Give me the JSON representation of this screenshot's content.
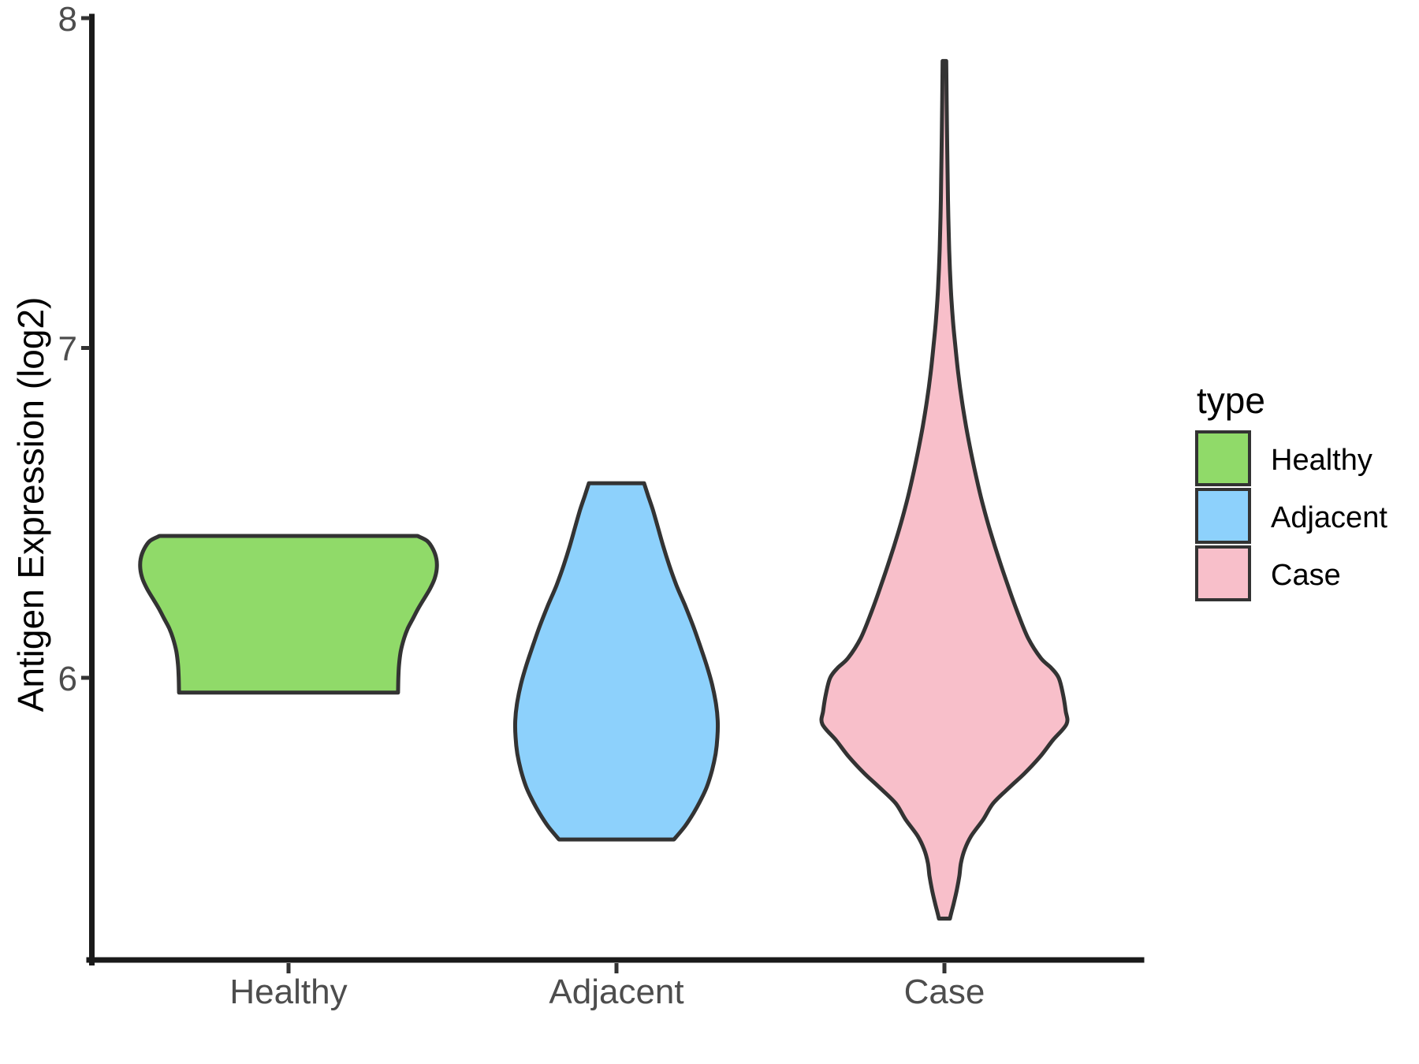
{
  "chart_data": {
    "type": "violin",
    "title": "",
    "xlabel": "",
    "ylabel": "Antigen Expression (log2)",
    "categories": [
      "Healthy",
      "Adjacent",
      "Case"
    ],
    "y_axis": {
      "ticks": [
        8,
        7,
        6
      ],
      "range": [
        5.14,
        8.0
      ],
      "grid": false
    },
    "x_axis": {
      "tick_labels": [
        "Healthy",
        "Adjacent",
        "Case"
      ]
    },
    "legend": {
      "title": "type",
      "position": "right",
      "entries": [
        {
          "label": "Healthy",
          "color": "#90DA69"
        },
        {
          "label": "Adjacent",
          "color": "#8DD1FC"
        },
        {
          "label": "Case",
          "color": "#F8BFCA"
        }
      ]
    },
    "style": {
      "outline_color": "#333333",
      "axis_color": "#1A1A1A",
      "tick_label_color": "#4D4D4D",
      "background": "#FFFFFF"
    },
    "series": [
      {
        "name": "Healthy",
        "fill": "#90DA69",
        "value_range": [
          5.955,
          6.43
        ],
        "profile": [
          [
            6.43,
            0.87
          ],
          [
            6.415,
            0.935
          ],
          [
            6.39,
            0.975
          ],
          [
            6.36,
            0.998
          ],
          [
            6.33,
            1.0
          ],
          [
            6.3,
            0.985
          ],
          [
            6.27,
            0.955
          ],
          [
            6.24,
            0.915
          ],
          [
            6.21,
            0.875
          ],
          [
            6.18,
            0.84
          ],
          [
            6.15,
            0.805
          ],
          [
            6.12,
            0.78
          ],
          [
            6.08,
            0.757
          ],
          [
            6.04,
            0.746
          ],
          [
            6.0,
            0.741
          ],
          [
            5.955,
            0.739
          ]
        ]
      },
      {
        "name": "Adjacent",
        "fill": "#8DD1FC",
        "value_range": [
          5.51,
          6.59
        ],
        "profile": [
          [
            6.59,
            0.186
          ],
          [
            6.55,
            0.215
          ],
          [
            6.51,
            0.245
          ],
          [
            6.46,
            0.277
          ],
          [
            6.4,
            0.315
          ],
          [
            6.34,
            0.357
          ],
          [
            6.28,
            0.405
          ],
          [
            6.22,
            0.462
          ],
          [
            6.16,
            0.515
          ],
          [
            6.1,
            0.562
          ],
          [
            6.04,
            0.607
          ],
          [
            5.98,
            0.645
          ],
          [
            5.92,
            0.672
          ],
          [
            5.87,
            0.683
          ],
          [
            5.82,
            0.681
          ],
          [
            5.77,
            0.669
          ],
          [
            5.72,
            0.645
          ],
          [
            5.67,
            0.61
          ],
          [
            5.63,
            0.569
          ],
          [
            5.59,
            0.52
          ],
          [
            5.55,
            0.462
          ],
          [
            5.51,
            0.388
          ]
        ]
      },
      {
        "name": "Case",
        "fill": "#F8BFCA",
        "value_range": [
          5.27,
          7.87
        ],
        "profile": [
          [
            7.87,
            0.012
          ],
          [
            7.75,
            0.015
          ],
          [
            7.6,
            0.019
          ],
          [
            7.45,
            0.024
          ],
          [
            7.3,
            0.032
          ],
          [
            7.18,
            0.043
          ],
          [
            7.08,
            0.058
          ],
          [
            7.0,
            0.075
          ],
          [
            6.92,
            0.094
          ],
          [
            6.84,
            0.118
          ],
          [
            6.76,
            0.147
          ],
          [
            6.68,
            0.181
          ],
          [
            6.6,
            0.219
          ],
          [
            6.52,
            0.262
          ],
          [
            6.44,
            0.312
          ],
          [
            6.36,
            0.368
          ],
          [
            6.28,
            0.428
          ],
          [
            6.2,
            0.492
          ],
          [
            6.12,
            0.565
          ],
          [
            6.06,
            0.65
          ],
          [
            6.03,
            0.72
          ],
          [
            6.0,
            0.771
          ],
          [
            5.95,
            0.8
          ],
          [
            5.9,
            0.818
          ],
          [
            5.86,
            0.824
          ],
          [
            5.81,
            0.73
          ],
          [
            5.76,
            0.644
          ],
          [
            5.71,
            0.54
          ],
          [
            5.67,
            0.444
          ],
          [
            5.62,
            0.33
          ],
          [
            5.57,
            0.261
          ],
          [
            5.52,
            0.18
          ],
          [
            5.48,
            0.137
          ],
          [
            5.44,
            0.112
          ],
          [
            5.4,
            0.101
          ],
          [
            5.36,
            0.085
          ],
          [
            5.32,
            0.065
          ],
          [
            5.29,
            0.048
          ],
          [
            5.27,
            0.037
          ]
        ]
      }
    ]
  }
}
